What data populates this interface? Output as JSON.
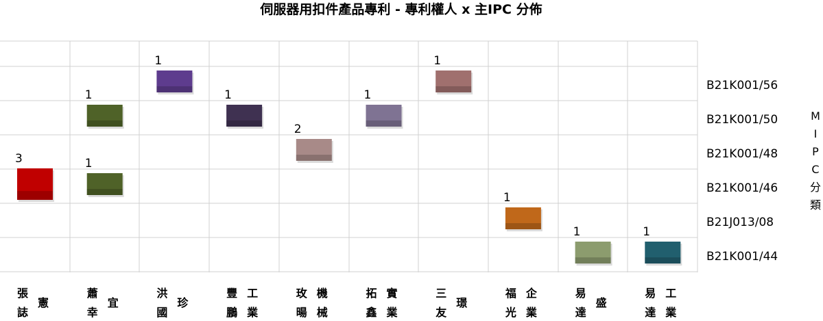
{
  "chart_data": {
    "type": "scatter",
    "title": "伺服器用扣件產品專利 - 專利權人 x 主IPC 分佈",
    "ylabel": "MIPC分類",
    "categories": [
      [
        "張憲",
        "誌"
      ],
      [
        "蕭宜",
        "幸"
      ],
      [
        "洪珍",
        "國"
      ],
      [
        "豐工",
        "鵬業"
      ],
      [
        "玫機",
        "暘械"
      ],
      [
        "拓實",
        "鑫業"
      ],
      [
        "三璟",
        "友"
      ],
      [
        "福企",
        "光業"
      ],
      [
        "易盛",
        "達"
      ],
      [
        "易工",
        "達業"
      ]
    ],
    "ipc_classes": [
      "B21K001/56",
      "B21K001/50",
      "B21K001/48",
      "B21K001/46",
      "B21J013/08",
      "B21K001/44"
    ],
    "points": [
      {
        "assignee": 0,
        "ipc": "B21K001/46",
        "value": 3,
        "color": "#c00000"
      },
      {
        "assignee": 1,
        "ipc": "B21K001/50",
        "value": 1,
        "color": "#4f6228"
      },
      {
        "assignee": 1,
        "ipc": "B21K001/46",
        "value": 1,
        "color": "#4f6228"
      },
      {
        "assignee": 2,
        "ipc": "B21K001/56",
        "value": 1,
        "color": "#5e3c8e"
      },
      {
        "assignee": 3,
        "ipc": "B21K001/50",
        "value": 1,
        "color": "#3f3151"
      },
      {
        "assignee": 4,
        "ipc": "B21K001/48",
        "value": 2,
        "color": "#a88a88"
      },
      {
        "assignee": 5,
        "ipc": "B21K001/50",
        "value": 1,
        "color": "#7f7393"
      },
      {
        "assignee": 6,
        "ipc": "B21K001/56",
        "value": 1,
        "color": "#a0706e"
      },
      {
        "assignee": 7,
        "ipc": "B21J013/08",
        "value": 1,
        "color": "#c0681a"
      },
      {
        "assignee": 8,
        "ipc": "B21K001/44",
        "value": 1,
        "color": "#8c9c6e"
      },
      {
        "assignee": 9,
        "ipc": "B21K001/44",
        "value": 1,
        "color": "#215f6e"
      }
    ],
    "grid": true
  }
}
